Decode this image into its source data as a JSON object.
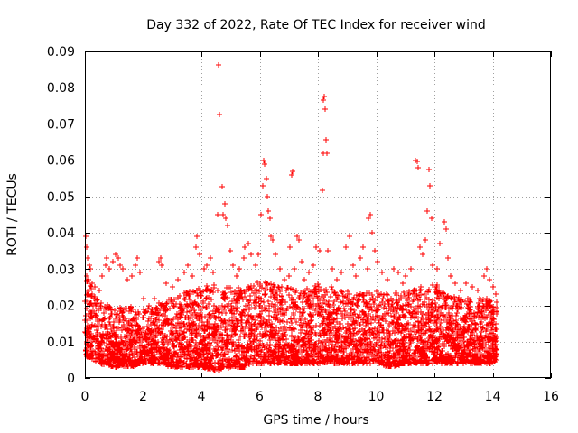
{
  "chart_data": {
    "type": "scatter",
    "title": "Day 332 of 2022, Rate Of TEC Index for receiver wind",
    "xlabel": "GPS time / hours",
    "ylabel": "ROTI / TECUs",
    "xlim": [
      0,
      16
    ],
    "ylim": [
      0,
      0.09
    ],
    "xticks": [
      "0",
      "2",
      "4",
      "6",
      "8",
      "10",
      "12",
      "14",
      "16"
    ],
    "yticks": [
      "0",
      "0.01",
      "0.02",
      "0.03",
      "0.04",
      "0.05",
      "0.06",
      "0.07",
      "0.08",
      "0.09"
    ],
    "grid": true,
    "marker": "+",
    "color": "#ff0000",
    "series": [
      {
        "points": [
          [
            0.03,
            0.039
          ],
          [
            0.05,
            0.036
          ],
          [
            0.1,
            0.033
          ],
          [
            0.15,
            0.031
          ],
          [
            0.2,
            0.03
          ],
          [
            0.05,
            0.028
          ],
          [
            0.12,
            0.027
          ],
          [
            0.25,
            0.026
          ],
          [
            0.35,
            0.025
          ],
          [
            0.5,
            0.024
          ],
          [
            0.6,
            0.028
          ],
          [
            0.7,
            0.031
          ],
          [
            0.75,
            0.033
          ],
          [
            0.85,
            0.03
          ],
          [
            0.95,
            0.032
          ],
          [
            1.05,
            0.034
          ],
          [
            1.15,
            0.033
          ],
          [
            1.2,
            0.031
          ],
          [
            1.3,
            0.03
          ],
          [
            1.45,
            0.027
          ],
          [
            1.6,
            0.028
          ],
          [
            1.75,
            0.031
          ],
          [
            1.8,
            0.033
          ],
          [
            1.9,
            0.029
          ],
          [
            2.0,
            0.022
          ],
          [
            2.2,
            0.02
          ],
          [
            2.4,
            0.022
          ],
          [
            2.55,
            0.032
          ],
          [
            2.6,
            0.033
          ],
          [
            2.65,
            0.031
          ],
          [
            2.8,
            0.026
          ],
          [
            3.0,
            0.025
          ],
          [
            3.2,
            0.027
          ],
          [
            3.4,
            0.029
          ],
          [
            3.55,
            0.031
          ],
          [
            3.7,
            0.028
          ],
          [
            3.8,
            0.036
          ],
          [
            3.85,
            0.039
          ],
          [
            3.95,
            0.034
          ],
          [
            4.1,
            0.03
          ],
          [
            4.2,
            0.031
          ],
          [
            4.3,
            0.033
          ],
          [
            4.4,
            0.029
          ],
          [
            4.55,
            0.045
          ],
          [
            4.6,
            0.0862
          ],
          [
            4.62,
            0.0727
          ],
          [
            4.7,
            0.0527
          ],
          [
            4.75,
            0.045
          ],
          [
            4.8,
            0.048
          ],
          [
            4.85,
            0.044
          ],
          [
            4.9,
            0.042
          ],
          [
            5.0,
            0.035
          ],
          [
            5.1,
            0.031
          ],
          [
            5.2,
            0.028
          ],
          [
            5.3,
            0.03
          ],
          [
            5.45,
            0.033
          ],
          [
            5.5,
            0.036
          ],
          [
            5.6,
            0.037
          ],
          [
            5.7,
            0.034
          ],
          [
            5.85,
            0.031
          ],
          [
            5.95,
            0.034
          ],
          [
            6.05,
            0.045
          ],
          [
            6.1,
            0.053
          ],
          [
            6.15,
            0.06
          ],
          [
            6.18,
            0.059
          ],
          [
            6.22,
            0.055
          ],
          [
            6.25,
            0.05
          ],
          [
            6.3,
            0.046
          ],
          [
            6.35,
            0.044
          ],
          [
            6.4,
            0.039
          ],
          [
            6.45,
            0.038
          ],
          [
            6.55,
            0.034
          ],
          [
            6.7,
            0.03
          ],
          [
            6.85,
            0.027
          ],
          [
            7.0,
            0.028
          ],
          [
            7.05,
            0.036
          ],
          [
            7.1,
            0.056
          ],
          [
            7.12,
            0.057
          ],
          [
            7.2,
            0.03
          ],
          [
            7.3,
            0.039
          ],
          [
            7.35,
            0.038
          ],
          [
            7.45,
            0.032
          ],
          [
            7.55,
            0.027
          ],
          [
            7.7,
            0.029
          ],
          [
            7.85,
            0.031
          ],
          [
            7.95,
            0.036
          ],
          [
            8.05,
            0.035
          ],
          [
            8.15,
            0.0517
          ],
          [
            8.18,
            0.062
          ],
          [
            8.2,
            0.0765
          ],
          [
            8.22,
            0.0775
          ],
          [
            8.25,
            0.074
          ],
          [
            8.27,
            0.0657
          ],
          [
            8.3,
            0.062
          ],
          [
            8.35,
            0.035
          ],
          [
            8.5,
            0.03
          ],
          [
            8.65,
            0.027
          ],
          [
            8.8,
            0.029
          ],
          [
            8.95,
            0.036
          ],
          [
            9.1,
            0.039
          ],
          [
            9.2,
            0.031
          ],
          [
            9.3,
            0.028
          ],
          [
            9.45,
            0.033
          ],
          [
            9.55,
            0.036
          ],
          [
            9.7,
            0.03
          ],
          [
            9.75,
            0.044
          ],
          [
            9.8,
            0.045
          ],
          [
            9.85,
            0.04
          ],
          [
            9.95,
            0.035
          ],
          [
            10.05,
            0.032
          ],
          [
            10.2,
            0.029
          ],
          [
            10.4,
            0.027
          ],
          [
            10.6,
            0.03
          ],
          [
            10.75,
            0.029
          ],
          [
            10.9,
            0.026
          ],
          [
            11.0,
            0.028
          ],
          [
            11.2,
            0.03
          ],
          [
            11.35,
            0.06
          ],
          [
            11.4,
            0.0597
          ],
          [
            11.45,
            0.058
          ],
          [
            11.5,
            0.036
          ],
          [
            11.6,
            0.034
          ],
          [
            11.7,
            0.038
          ],
          [
            11.75,
            0.046
          ],
          [
            11.8,
            0.0575
          ],
          [
            11.83,
            0.053
          ],
          [
            11.9,
            0.044
          ],
          [
            11.95,
            0.031
          ],
          [
            12.1,
            0.03
          ],
          [
            12.2,
            0.037
          ],
          [
            12.35,
            0.043
          ],
          [
            12.4,
            0.041
          ],
          [
            12.45,
            0.033
          ],
          [
            12.55,
            0.028
          ],
          [
            12.7,
            0.026
          ],
          [
            12.9,
            0.024
          ],
          [
            13.1,
            0.026
          ],
          [
            13.3,
            0.025
          ],
          [
            13.5,
            0.024
          ],
          [
            13.7,
            0.028
          ],
          [
            13.8,
            0.03
          ],
          [
            13.9,
            0.027
          ],
          [
            14.0,
            0.025
          ],
          [
            14.1,
            0.023
          ],
          [
            14.15,
            0.021
          ]
        ],
        "density_envelope": {
          "x": [
            0.0,
            0.5,
            1.0,
            1.5,
            2.0,
            2.5,
            3.0,
            3.5,
            4.0,
            4.5,
            5.0,
            5.5,
            6.0,
            6.5,
            7.0,
            7.5,
            8.0,
            8.5,
            9.0,
            9.5,
            10.0,
            10.5,
            11.0,
            11.5,
            12.0,
            12.5,
            13.0,
            13.5,
            14.0,
            14.15
          ],
          "low": [
            0.006,
            0.004,
            0.003,
            0.003,
            0.004,
            0.004,
            0.003,
            0.003,
            0.003,
            0.002,
            0.003,
            0.003,
            0.004,
            0.004,
            0.004,
            0.004,
            0.004,
            0.004,
            0.004,
            0.004,
            0.004,
            0.003,
            0.004,
            0.004,
            0.004,
            0.004,
            0.004,
            0.004,
            0.004,
            0.005
          ],
          "high": [
            0.028,
            0.021,
            0.02,
            0.02,
            0.019,
            0.021,
            0.022,
            0.024,
            0.025,
            0.026,
            0.025,
            0.025,
            0.027,
            0.026,
            0.025,
            0.024,
            0.026,
            0.025,
            0.024,
            0.023,
            0.024,
            0.023,
            0.024,
            0.025,
            0.026,
            0.024,
            0.022,
            0.022,
            0.022,
            0.02
          ]
        }
      }
    ]
  }
}
